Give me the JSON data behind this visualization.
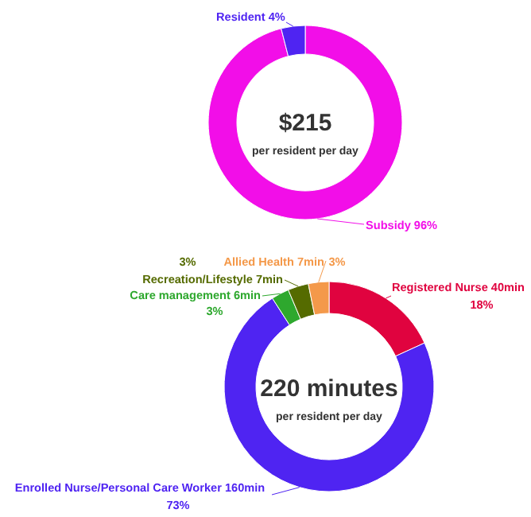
{
  "chart_data": [
    {
      "type": "donut",
      "categories": [
        "Subsidy",
        "Resident"
      ],
      "values": [
        96,
        4
      ],
      "colors": [
        "#f20ee8",
        "#4f24f2"
      ],
      "value_labels": [
        "96%",
        "4%"
      ],
      "annotations": [
        "$215",
        "per resident per day"
      ]
    },
    {
      "type": "donut",
      "categories": [
        "Registered Nurse",
        "Enrolled Nurse/Personal Care Worker",
        "Care management",
        "Recreation/Lifestyle",
        "Allied Health"
      ],
      "values": [
        40,
        160,
        6,
        7,
        7
      ],
      "colors": [
        "#e0033f",
        "#4f24f2",
        "#2ea82e",
        "#556b00",
        "#f4994a"
      ],
      "value_labels": [
        "40min 18%",
        "160min 73%",
        "6min 3%",
        "7min 3%",
        "7min 3%"
      ],
      "annotations": [
        "220 minutes",
        "per resident per day"
      ]
    }
  ]
}
